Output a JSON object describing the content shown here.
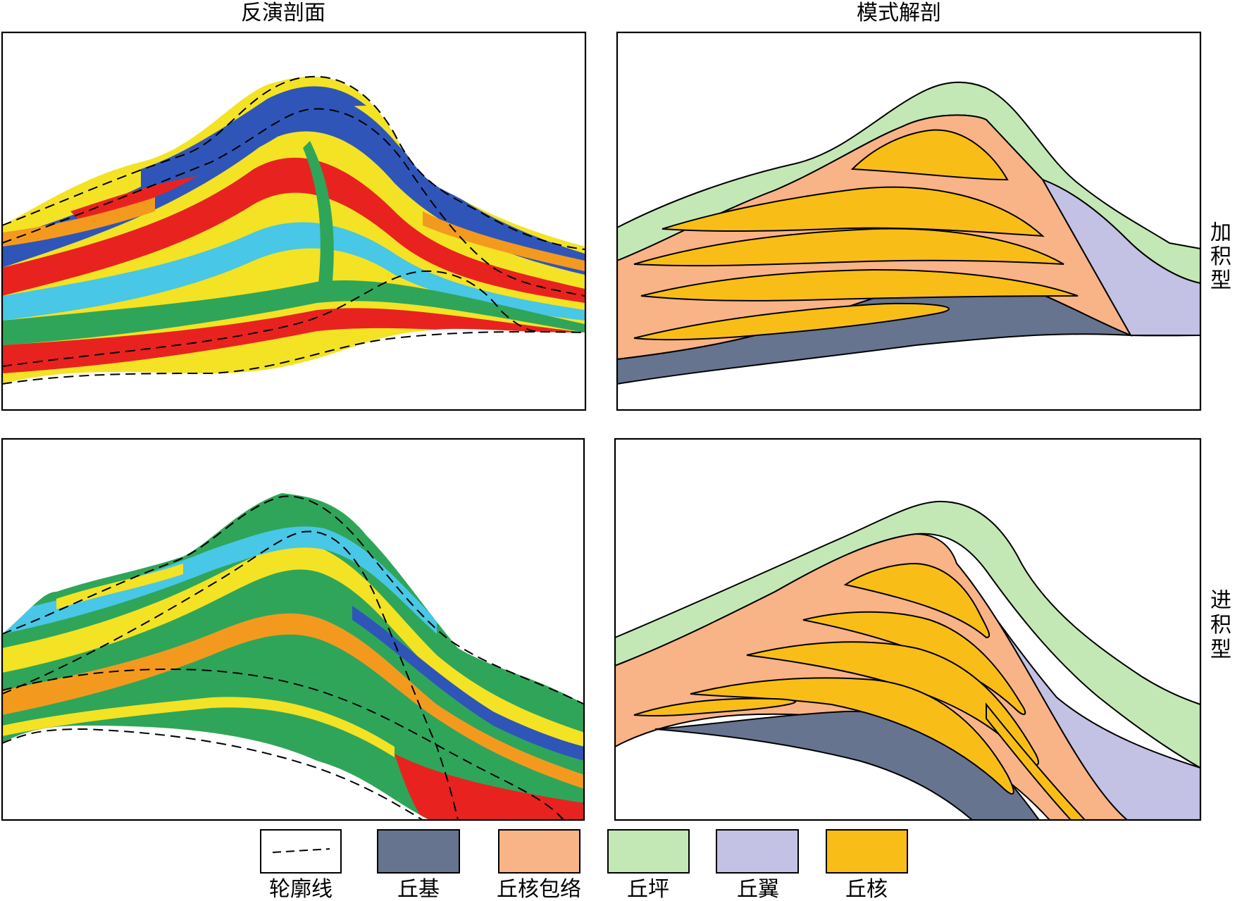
{
  "headers": {
    "left": "反演剖面",
    "right": "模式解剖"
  },
  "rows": [
    {
      "label": [
        "加",
        "积",
        "型"
      ]
    },
    {
      "label": [
        "进",
        "积",
        "型"
      ]
    }
  ],
  "legend": [
    {
      "label": "轮廓线",
      "swatch": "dashed"
    },
    {
      "label": "丘基",
      "color": "#66748F"
    },
    {
      "label": "丘核包络",
      "color": "#F8B386"
    },
    {
      "label": "丘坪",
      "color": "#C4E8B5"
    },
    {
      "label": "丘翼",
      "color": "#C3C1E4"
    },
    {
      "label": "丘核",
      "color": "#F8BE17"
    }
  ],
  "seismic_palette": [
    "#2F55B8",
    "#48C7E6",
    "#2FA55A",
    "#F3E324",
    "#F39A1E",
    "#E8231F"
  ]
}
